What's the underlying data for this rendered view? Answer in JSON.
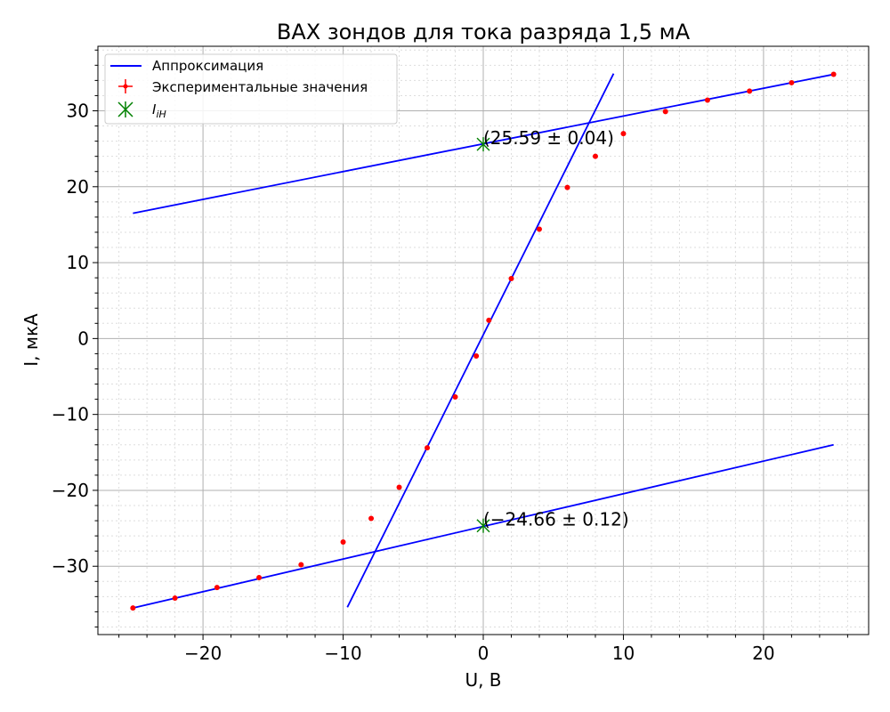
{
  "chart_data": {
    "type": "scatter",
    "title": "ВАХ зондов для тока разряда 1,5 мА",
    "xlabel": "U, В",
    "ylabel": "I, мкА",
    "xlim": [
      -27.5,
      27.5
    ],
    "ylim": [
      -39,
      38.5
    ],
    "x_ticks": [
      -20,
      -10,
      0,
      10,
      20
    ],
    "x_tick_labels": [
      "−20",
      "−10",
      "0",
      "10",
      "20"
    ],
    "y_ticks": [
      -30,
      -20,
      -10,
      0,
      10,
      20,
      30
    ],
    "y_tick_labels": [
      "−30",
      "−20",
      "−10",
      "0",
      "10",
      "20",
      "30"
    ],
    "grid": true,
    "minor_grid": true,
    "legend_position": "top-left",
    "legend": {
      "fit": "Аппроксимация",
      "experimental": "Экспериментальные значения",
      "ion_current": "I_iН"
    },
    "colors": {
      "fit": "#0000ff",
      "experimental": "#ff0000",
      "ion_current": "#008000",
      "grid_major": "#b0b0b0",
      "grid_minor": "#dddddd"
    },
    "series": [
      {
        "name": "Экспериментальные значения",
        "kind": "points",
        "x": [
          -25,
          -22,
          -19,
          -16,
          -13,
          -10,
          -8,
          -6,
          -4,
          -2,
          -0.5,
          0.4,
          2,
          4,
          6,
          8,
          10,
          13,
          16,
          19,
          22,
          25
        ],
        "y": [
          -35.5,
          -34.2,
          -32.8,
          -31.5,
          -29.8,
          -26.8,
          -23.7,
          -19.6,
          -14.4,
          -7.7,
          -2.3,
          2.4,
          7.9,
          14.4,
          19.9,
          24.0,
          27.0,
          29.9,
          31.4,
          32.6,
          33.7,
          34.8
        ]
      },
      {
        "name": "Аппроксимация",
        "kind": "lines",
        "segments": [
          {
            "x": [
              -25,
              25
            ],
            "y": [
              16.5,
              34.8
            ]
          },
          {
            "x": [
              -9.7,
              9.3
            ],
            "y": [
              -35.4,
              34.9
            ]
          },
          {
            "x": [
              -25,
              25
            ],
            "y": [
              -35.5,
              -14.0
            ]
          }
        ]
      },
      {
        "name": "I_iН",
        "kind": "markers",
        "x": [
          0,
          0
        ],
        "y": [
          25.59,
          -24.66
        ]
      }
    ],
    "annotations": [
      {
        "text": "(25.59 ± 0.04)",
        "x": 0,
        "y": 25.59
      },
      {
        "text": "(−24.66 ± 0.12)",
        "x": 0,
        "y": -24.66
      }
    ]
  }
}
